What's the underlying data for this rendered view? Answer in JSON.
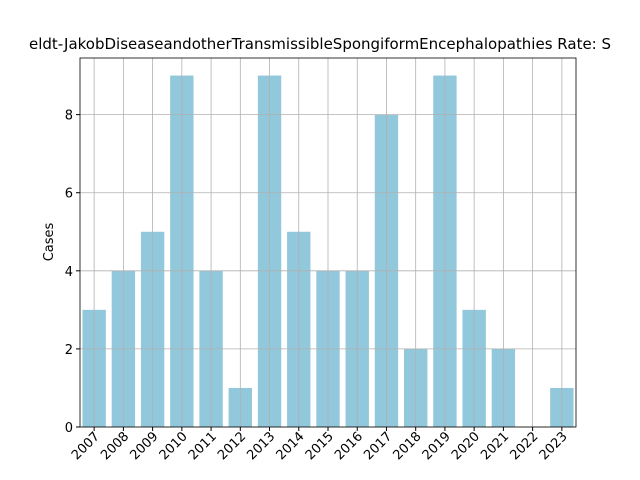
{
  "chart_data": {
    "type": "bar",
    "title": "eldt-JakobDiseaseandotherTransmissibleSpongiformEncephalopathies Rate: S",
    "y_label": "Cases",
    "categories": [
      "2007",
      "2008",
      "2009",
      "2010",
      "2011",
      "2012",
      "2013",
      "2014",
      "2015",
      "2016",
      "2017",
      "2018",
      "2019",
      "2020",
      "2021",
      "2022",
      "2023"
    ],
    "values": [
      3,
      4,
      5,
      9,
      4,
      1,
      9,
      5,
      4,
      4,
      8,
      2,
      9,
      3,
      2,
      0,
      1
    ],
    "color": "#92c8dc",
    "ylim": [
      0,
      9.45
    ],
    "yticks": [
      0,
      2,
      4,
      6,
      8
    ],
    "grid": true
  }
}
